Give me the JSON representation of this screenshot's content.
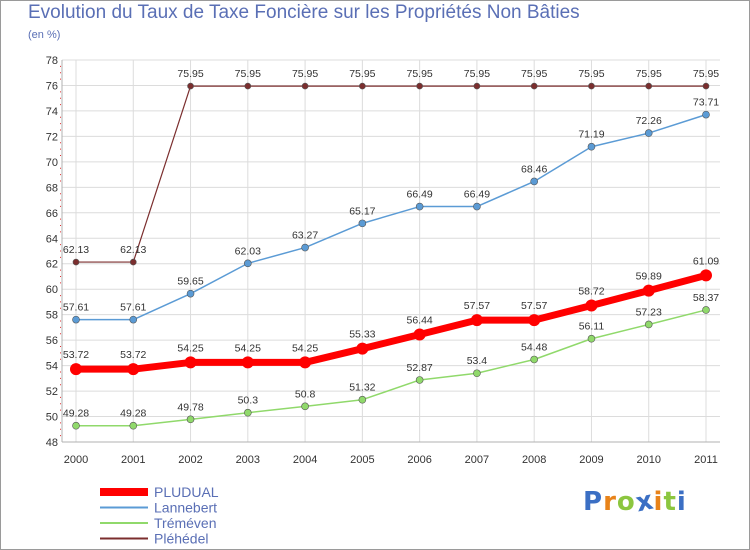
{
  "title": "Evolution du Taux de Taxe Foncière sur les Propriétés Non Bâties",
  "subtitle": "(en %)",
  "logo": {
    "text": "Proxiti",
    "letters": [
      "P",
      "r",
      "o",
      "x",
      "i",
      "t",
      "i"
    ],
    "colors": [
      "#3b6fc4",
      "#e8831a",
      "#8cc63f",
      "#3b6fc4",
      "#e8831a",
      "#8cc63f",
      "#3b6fc4"
    ]
  },
  "chart_data": {
    "type": "line",
    "title": "Evolution du Taux de Taxe Foncière sur les Propriétés Non Bâties",
    "subtitle": "(en %)",
    "xlabel": "",
    "ylabel": "",
    "x": [
      "2000",
      "2001",
      "2002",
      "2003",
      "2004",
      "2005",
      "2006",
      "2007",
      "2008",
      "2009",
      "2010",
      "2011"
    ],
    "ylim": [
      48,
      78
    ],
    "yticks": [
      48,
      50,
      52,
      54,
      56,
      58,
      60,
      62,
      64,
      66,
      68,
      70,
      72,
      74,
      76,
      78
    ],
    "grid": true,
    "legend_position": "bottom-left",
    "series": [
      {
        "name": "PLUDUAL",
        "color": "#ff0000",
        "values": [
          53.72,
          53.72,
          54.25,
          54.25,
          54.25,
          55.33,
          56.44,
          57.57,
          57.57,
          58.72,
          59.89,
          61.09
        ],
        "labels": [
          "53.72",
          "53.72",
          "54.25",
          "54.25",
          "54.25",
          "55.33",
          "56.44",
          "57.57",
          "57.57",
          "58.72",
          "59.89",
          "61.09"
        ]
      },
      {
        "name": "Lannebert",
        "color": "#5b9bd5",
        "values": [
          57.61,
          57.61,
          59.65,
          62.03,
          63.27,
          65.17,
          66.49,
          66.49,
          68.46,
          71.19,
          72.26,
          73.71
        ],
        "labels": [
          "57.61",
          "57.61",
          "59.65",
          "62.03",
          "63.27",
          "65.17",
          "66.49",
          "66.49",
          "68.46",
          "71.19",
          "72.26",
          "73.71"
        ]
      },
      {
        "name": "Tréméven",
        "color": "#90d96b",
        "values": [
          49.28,
          49.28,
          49.78,
          50.3,
          50.8,
          51.32,
          52.87,
          53.4,
          54.48,
          56.11,
          57.23,
          58.37
        ],
        "labels": [
          "49.28",
          "49.28",
          "49.78",
          "50.3",
          "50.8",
          "51.32",
          "52.87",
          "53.4",
          "54.48",
          "56.11",
          "57.23",
          "58.37"
        ]
      },
      {
        "name": "Pléhédel",
        "color": "#7b2e2e",
        "values": [
          62.13,
          62.13,
          75.95,
          75.95,
          75.95,
          75.95,
          75.95,
          75.95,
          75.95,
          75.95,
          75.95,
          75.95
        ],
        "labels": [
          "62.13",
          "62.13",
          "75.95",
          "75.95",
          "75.95",
          "75.95",
          "75.95",
          "75.95",
          "75.95",
          "75.95",
          "75.95",
          "75.95"
        ]
      }
    ]
  }
}
